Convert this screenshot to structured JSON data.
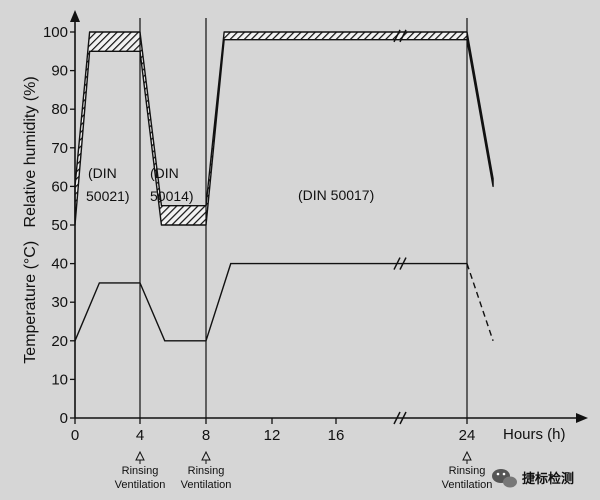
{
  "chart_data": {
    "type": "line",
    "title": "",
    "xlabel": "Hours (h)",
    "ylabel": "Temperature (°C)   Relative humidity (%)",
    "xlim": [
      0,
      27
    ],
    "ylim": [
      0,
      100
    ],
    "y_ticks": [
      0,
      10,
      20,
      30,
      40,
      50,
      60,
      70,
      80,
      90,
      100
    ],
    "x_tick_labels": [
      "0",
      "4",
      "8",
      "12",
      "16",
      "24"
    ],
    "x_axis_break": "between 16 and 24",
    "grid": false,
    "legend": "none",
    "series": [
      {
        "name": "",
        "style": "solid",
        "x": [
          0,
          1.5,
          4,
          5.5,
          8,
          9.5,
          24
        ],
        "y": [
          20,
          35,
          35,
          20,
          20,
          40,
          40
        ]
      },
      {
        "name": "",
        "style": "dashed",
        "x": [
          24,
          25.7
        ],
        "y": [
          40,
          20
        ]
      },
      {
        "name": "",
        "style": "hatched-band",
        "x": [
          0,
          0.9,
          4,
          5.3,
          8,
          9.1,
          24,
          25.7
        ],
        "y_lower": [
          50,
          95,
          95,
          50,
          50,
          98,
          98,
          60
        ],
        "y_upper": [
          60,
          100,
          100,
          55,
          55,
          100,
          100,
          62
        ]
      }
    ],
    "annotations": {
      "din_50021": [
        "(DIN",
        "50021)"
      ],
      "din_50014": [
        "(DIN",
        "50014)"
      ],
      "din_50017": "(DIN 50017)",
      "markers": [
        {
          "hour": 4,
          "lines": [
            "Rinsing",
            "Ventilation"
          ]
        },
        {
          "hour": 8,
          "lines": [
            "Rinsing",
            "Ventilation"
          ]
        },
        {
          "hour": 24,
          "lines": [
            "Rinsing",
            "Ventilation"
          ]
        }
      ]
    }
  },
  "watermark": {
    "text": "捷标检测",
    "icon": "wechat-icon"
  }
}
